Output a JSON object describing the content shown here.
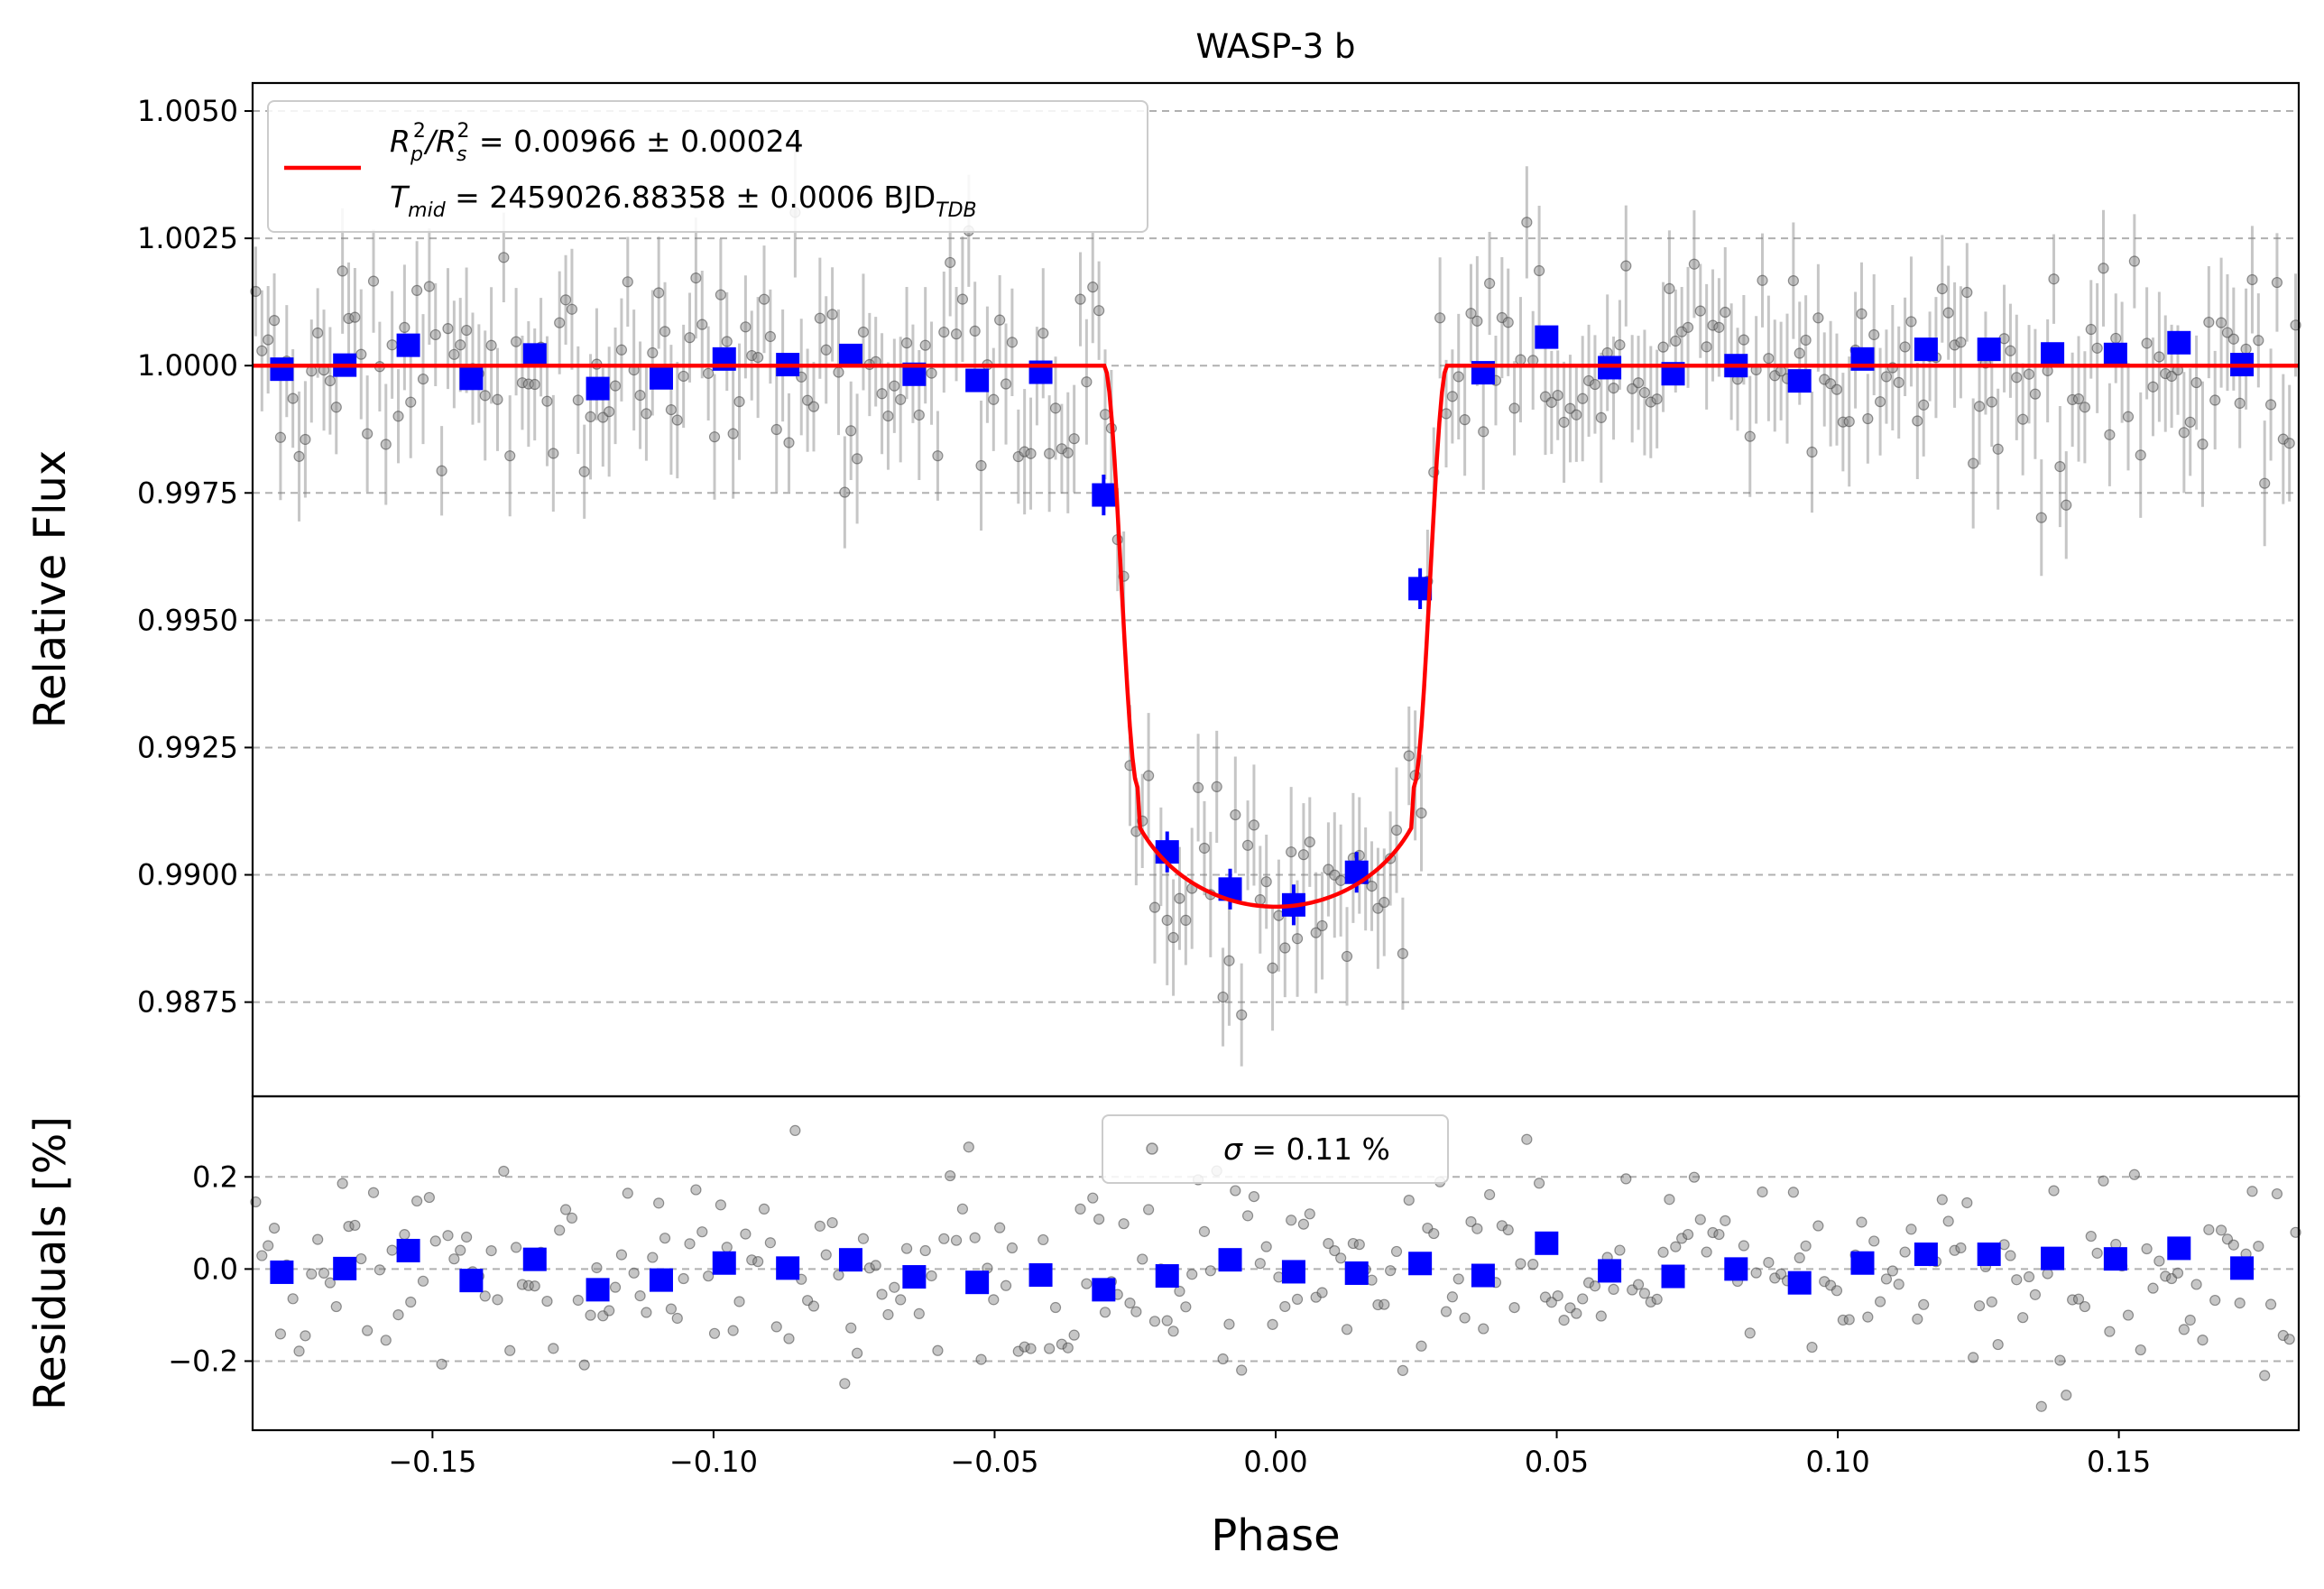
{
  "chart_data": [
    {
      "type": "scatter",
      "panel": "main",
      "title": "WASP-3 b",
      "xlabel": "",
      "ylabel": "Relative Flux",
      "xlim": [
        -0.182,
        0.182
      ],
      "ylim": [
        0.98565,
        1.00555
      ],
      "y_ticks": [
        0.9875,
        0.99,
        0.9925,
        0.995,
        0.9975,
        1.0,
        1.0025,
        1.005
      ],
      "y_tick_labels": [
        "0.9875",
        "0.9900",
        "0.9925",
        "0.9950",
        "0.9975",
        "1.0000",
        "1.0025",
        "1.0050"
      ],
      "grid": "horizontal dashed",
      "legend": {
        "placement": "top-left",
        "line1": {
          "base": "R",
          "sub1": "p",
          "sup1": "2",
          "mid": "/R",
          "sub2": "s",
          "sup2": "2",
          "rest": " = 0.00966 ± 0.00024"
        },
        "line2": {
          "base": "T",
          "sub": "mid",
          "rest": " = 2459026.88358 ± 0.0006 BJD",
          "sub2": "TDB"
        }
      },
      "model": {
        "name": "transit model",
        "color": "#ff0000",
        "depth": 0.00966,
        "tmid_phase": 0.0,
        "t14_half": 0.0305,
        "t23_half": 0.0245
      },
      "binned": {
        "color": "#0000ff",
        "x": [
          -0.1768,
          -0.1656,
          -0.1543,
          -0.1431,
          -0.1318,
          -0.1206,
          -0.1093,
          -0.0981,
          -0.0868,
          -0.0756,
          -0.0643,
          -0.0531,
          -0.0418,
          -0.0306,
          -0.0193,
          -0.0081,
          0.0032,
          0.0144,
          0.0257,
          0.0369,
          0.0482,
          0.0594,
          0.0707,
          0.0819,
          0.0932,
          0.1044,
          0.1157,
          0.1269,
          0.1382,
          0.1494,
          0.1607,
          0.1719
        ],
        "y": [
          0.99993,
          1.00001,
          1.0004,
          0.99975,
          1.00021,
          0.99955,
          0.99976,
          1.00013,
          1.00002,
          1.0002,
          0.99983,
          0.99971,
          0.99987,
          0.99746,
          0.99045,
          0.98972,
          0.98941,
          0.99005,
          0.99562,
          0.99986,
          1.00056,
          0.99996,
          0.99984,
          1.0,
          0.9997,
          1.00013,
          1.00032,
          1.00032,
          1.00023,
          1.00022,
          1.00045,
          1.00002
        ],
        "yerr": 0.0002
      },
      "raw": {
        "color": "#808080",
        "n_points": 330,
        "scatter_sigma": 0.0011,
        "yerr": 0.0011
      }
    },
    {
      "type": "scatter",
      "panel": "residuals",
      "title": "",
      "xlabel": "Phase",
      "ylabel": "Residuals [%]",
      "xlim": [
        -0.182,
        0.182
      ],
      "ylim": [
        -0.35,
        0.375
      ],
      "x_ticks": [
        -0.15,
        -0.1,
        -0.05,
        0.0,
        0.05,
        0.1,
        0.15
      ],
      "x_tick_labels": [
        "−0.15",
        "−0.10",
        "−0.05",
        "0.00",
        "0.05",
        "0.10",
        "0.15"
      ],
      "y_ticks": [
        -0.2,
        0.0,
        0.2
      ],
      "y_tick_labels": [
        "−0.2",
        "0.0",
        "0.2"
      ],
      "grid": "horizontal dashed",
      "legend": {
        "placement": "top-center",
        "symbol": "σ",
        "rest": " = 0.11 %"
      },
      "binned": {
        "color": "#0000ff",
        "x": [
          -0.1768,
          -0.1656,
          -0.1543,
          -0.1431,
          -0.1318,
          -0.1206,
          -0.1093,
          -0.0981,
          -0.0868,
          -0.0756,
          -0.0643,
          -0.0531,
          -0.0418,
          -0.0306,
          -0.0193,
          -0.0081,
          0.0032,
          0.0144,
          0.0257,
          0.0369,
          0.0482,
          0.0594,
          0.0707,
          0.0819,
          0.0932,
          0.1044,
          0.1157,
          0.1269,
          0.1382,
          0.1494,
          0.1607,
          0.1719
        ],
        "y": [
          -0.007,
          0.001,
          0.04,
          -0.025,
          0.021,
          -0.045,
          -0.024,
          0.013,
          0.002,
          0.02,
          -0.017,
          -0.029,
          -0.013,
          -0.045,
          -0.015,
          0.02,
          -0.006,
          -0.009,
          0.012,
          -0.014,
          0.056,
          -0.004,
          -0.016,
          0.0,
          -0.03,
          0.013,
          0.032,
          0.032,
          0.023,
          0.022,
          0.045,
          0.002
        ]
      },
      "raw": {
        "color": "#808080",
        "n_points": 330,
        "scatter_sigma": 0.11
      }
    }
  ]
}
